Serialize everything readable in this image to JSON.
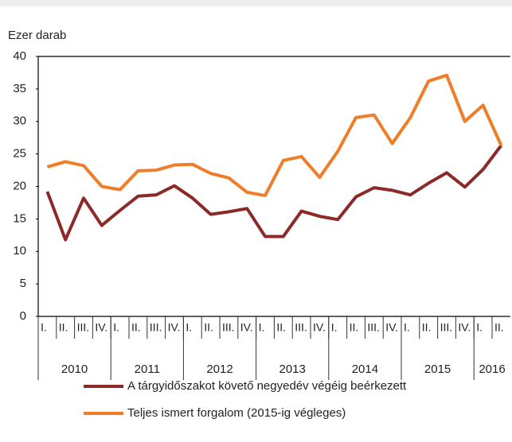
{
  "chart_data": {
    "type": "line",
    "y_label": "Ezer darab",
    "categories": [
      "I.",
      "II.",
      "III.",
      "IV.",
      "I.",
      "II.",
      "III.",
      "IV.",
      "I.",
      "II.",
      "III.",
      "IV.",
      "I.",
      "II.",
      "III.",
      "IV.",
      "I.",
      "II.",
      "III.",
      "IV.",
      "I.",
      "II.",
      "III.",
      "IV.",
      "I.",
      "II."
    ],
    "year_groups": [
      {
        "label": "2010",
        "span": 4
      },
      {
        "label": "2011",
        "span": 4
      },
      {
        "label": "2012",
        "span": 4
      },
      {
        "label": "2013",
        "span": 4
      },
      {
        "label": "2014",
        "span": 4
      },
      {
        "label": "2015",
        "span": 4
      },
      {
        "label": "2016",
        "span": 2
      }
    ],
    "series": [
      {
        "name": "A tárgyidőszakot követő negyedév végéig beérkezett",
        "color": "#8c2a2a",
        "values": [
          19.2,
          11.8,
          18.2,
          14.0,
          16.3,
          18.5,
          18.7,
          20.1,
          18.2,
          15.7,
          16.1,
          16.6,
          12.3,
          12.3,
          16.2,
          15.4,
          14.9,
          18.4,
          19.8,
          19.4,
          18.7,
          20.5,
          22.1,
          19.9,
          22.6,
          26.3
        ]
      },
      {
        "name": "Teljes ismert forgalom (2015-ig végleges)",
        "color": "#f07d2a",
        "values": [
          23.0,
          23.8,
          23.2,
          20.0,
          19.5,
          22.4,
          22.5,
          23.3,
          23.4,
          22.0,
          21.3,
          19.1,
          18.6,
          24.0,
          24.6,
          21.4,
          25.4,
          30.6,
          31.0,
          26.6,
          30.6,
          36.2,
          37.1,
          30.0,
          32.5,
          26.3
        ]
      }
    ],
    "ylim": [
      0,
      40
    ],
    "yticks": [
      0,
      5,
      10,
      15,
      20,
      25,
      30,
      35,
      40
    ],
    "grid": false,
    "legend": "bottom"
  }
}
